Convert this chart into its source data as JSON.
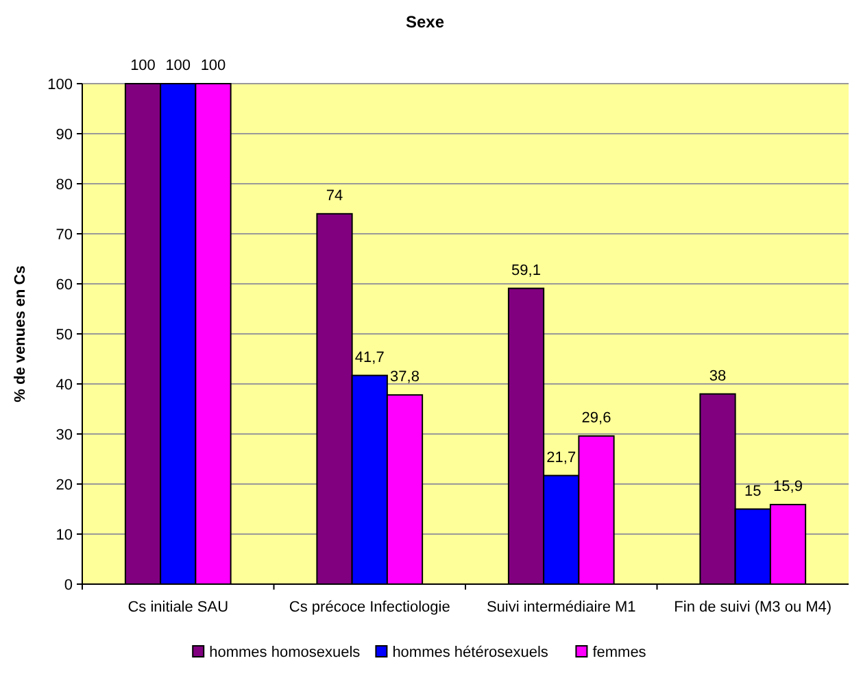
{
  "chart_data": {
    "type": "bar",
    "title": "Sexe",
    "ylabel": "% de venues en Cs",
    "categories": [
      "Cs initiale SAU",
      "Cs précoce Infectiologie",
      "Suivi intermédiaire M1",
      "Fin de suivi (M3 ou M4)"
    ],
    "series": [
      {
        "name": "hommes homosexuels",
        "color": "#800080",
        "values": [
          100,
          74,
          59.1,
          38
        ],
        "value_labels": [
          "100",
          "74",
          "59,1",
          "38"
        ]
      },
      {
        "name": "hommes hétérosexuels",
        "color": "#0000ff",
        "values": [
          100,
          41.7,
          21.7,
          15
        ],
        "value_labels": [
          "100",
          "41,7",
          "21,7",
          "15"
        ]
      },
      {
        "name": "femmes",
        "color": "#ff00ff",
        "values": [
          100,
          37.8,
          29.6,
          15.9
        ],
        "value_labels": [
          "100",
          "37,8",
          "29,6",
          "15,9"
        ]
      }
    ],
    "ylim": [
      0,
      100
    ],
    "yticks": [
      0,
      10,
      20,
      30,
      40,
      50,
      60,
      70,
      80,
      90,
      100
    ],
    "grid": "y",
    "legend": "bottom"
  }
}
